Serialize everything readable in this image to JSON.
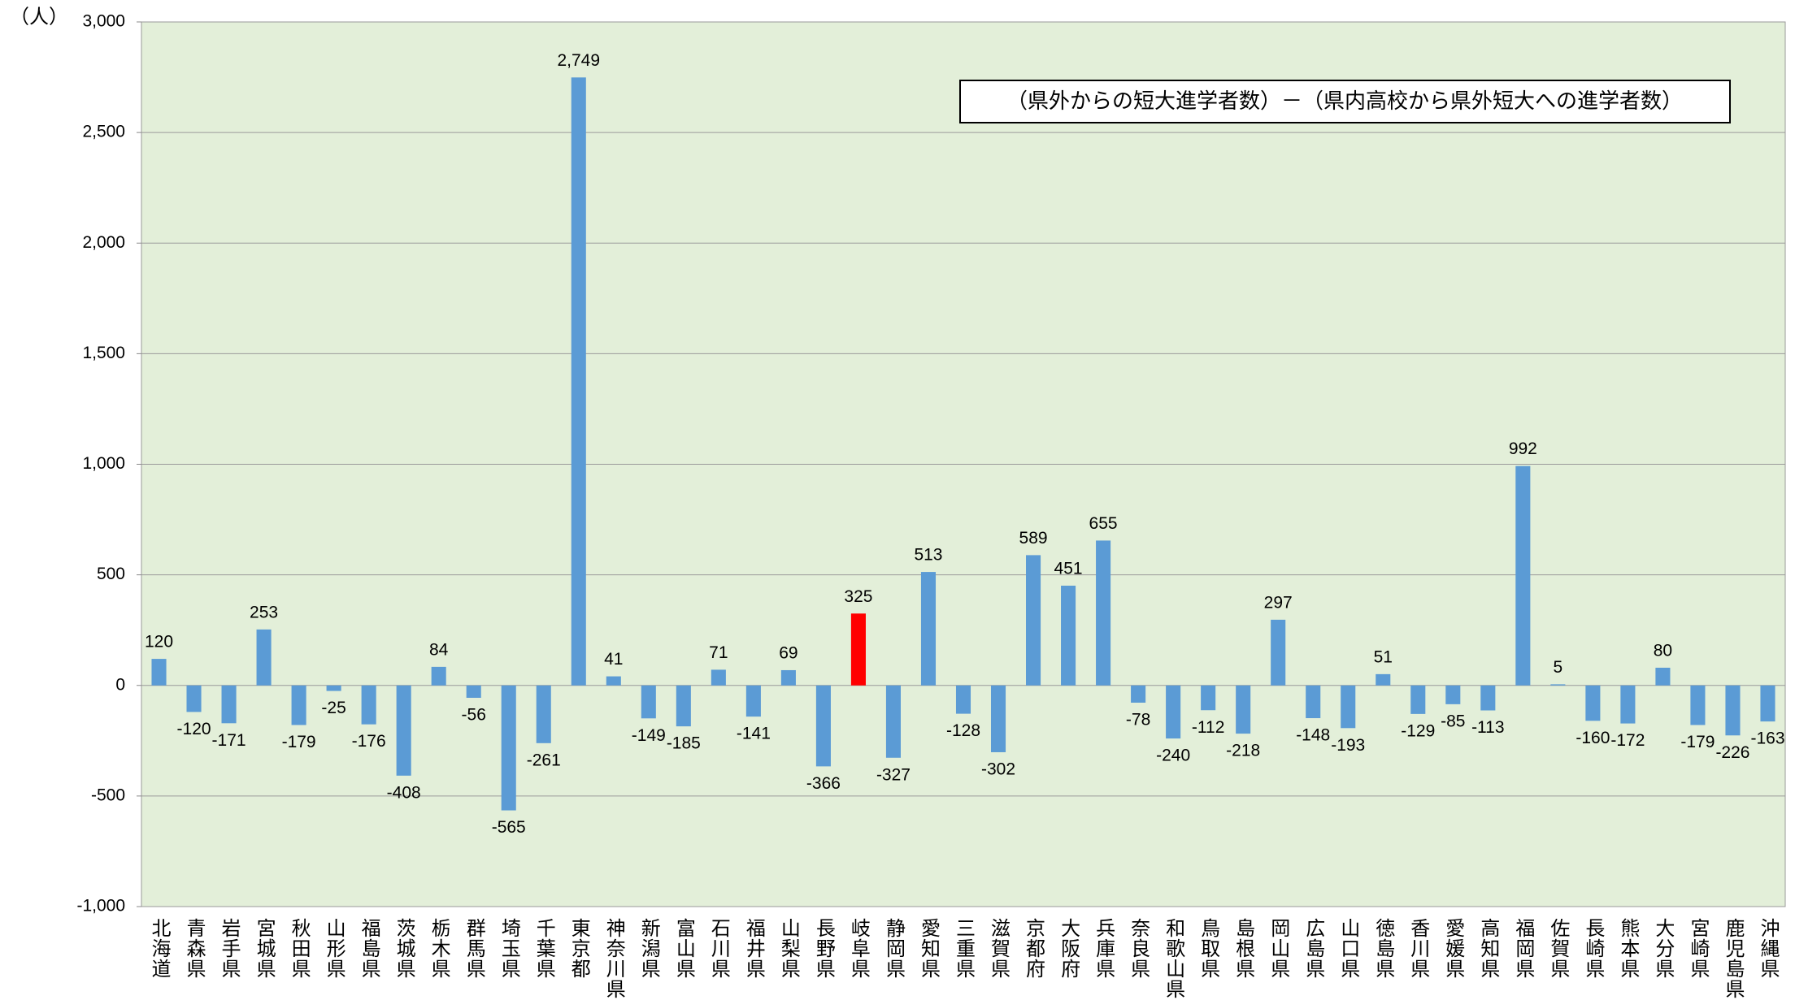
{
  "chart_data": {
    "type": "bar",
    "unit_label": "（人）",
    "annotation": "（県外からの短大進学者数）－（県内高校から県外短大への進学者数）",
    "categories": [
      "北海道",
      "青森県",
      "岩手県",
      "宮城県",
      "秋田県",
      "山形県",
      "福島県",
      "茨城県",
      "栃木県",
      "群馬県",
      "埼玉県",
      "千葉県",
      "東京都",
      "神奈川県",
      "新潟県",
      "富山県",
      "石川県",
      "福井県",
      "山梨県",
      "長野県",
      "岐阜県",
      "静岡県",
      "愛知県",
      "三重県",
      "滋賀県",
      "京都府",
      "大阪府",
      "兵庫県",
      "奈良県",
      "和歌山県",
      "鳥取県",
      "島根県",
      "岡山県",
      "広島県",
      "山口県",
      "徳島県",
      "香川県",
      "愛媛県",
      "高知県",
      "福岡県",
      "佐賀県",
      "長崎県",
      "熊本県",
      "大分県",
      "宮崎県",
      "鹿児島県",
      "沖縄県"
    ],
    "values": [
      120,
      -120,
      -171,
      253,
      -179,
      -25,
      -176,
      -408,
      84,
      -56,
      -565,
      -261,
      2749,
      41,
      -149,
      -185,
      71,
      -141,
      69,
      -366,
      325,
      -327,
      513,
      -128,
      -302,
      589,
      451,
      655,
      -78,
      -240,
      -112,
      -218,
      297,
      -148,
      -193,
      51,
      -129,
      -85,
      -113,
      992,
      5,
      -160,
      -172,
      80,
      -179,
      -226,
      -163
    ],
    "value_labels": [
      "120",
      "-120",
      "-171",
      "253",
      "-179",
      "-25",
      "-176",
      "-408",
      "84",
      "-56",
      "-565",
      "-261",
      "2,749",
      "41",
      "-149",
      "-185",
      "71",
      "-141",
      "69",
      "-366",
      "325",
      "-327",
      "513",
      "-128",
      "-302",
      "589",
      "451",
      "655",
      "-78",
      "-240",
      "-112",
      "-218",
      "297",
      "-148",
      "-193",
      "51",
      "-129",
      "-85",
      "-113",
      "992",
      "5",
      "-160",
      "-172",
      "80",
      "-179",
      "-226",
      "-163"
    ],
    "colors": [
      "#5b9bd5",
      "#5b9bd5",
      "#5b9bd5",
      "#5b9bd5",
      "#5b9bd5",
      "#5b9bd5",
      "#5b9bd5",
      "#5b9bd5",
      "#5b9bd5",
      "#5b9bd5",
      "#5b9bd5",
      "#5b9bd5",
      "#5b9bd5",
      "#5b9bd5",
      "#5b9bd5",
      "#5b9bd5",
      "#5b9bd5",
      "#5b9bd5",
      "#5b9bd5",
      "#5b9bd5",
      "#ff0000",
      "#5b9bd5",
      "#5b9bd5",
      "#5b9bd5",
      "#5b9bd5",
      "#5b9bd5",
      "#5b9bd5",
      "#5b9bd5",
      "#5b9bd5",
      "#5b9bd5",
      "#5b9bd5",
      "#5b9bd5",
      "#5b9bd5",
      "#5b9bd5",
      "#5b9bd5",
      "#5b9bd5",
      "#5b9bd5",
      "#5b9bd5",
      "#5b9bd5",
      "#5b9bd5",
      "#5b9bd5",
      "#5b9bd5",
      "#5b9bd5",
      "#5b9bd5",
      "#5b9bd5",
      "#5b9bd5",
      "#5b9bd5"
    ],
    "ylim": [
      -1000,
      3000
    ],
    "yticks": [
      {
        "value": -1000,
        "label": "-1,000"
      },
      -500,
      0,
      500,
      {
        "value": 1000,
        "label": "1,000"
      },
      {
        "value": 1500,
        "label": "1,500"
      },
      {
        "value": 2000,
        "label": "2,000"
      },
      {
        "value": 2500,
        "label": "2,500"
      },
      {
        "value": 3000,
        "label": "3,000"
      }
    ],
    "grid": true,
    "plot_background": "#e3efd9"
  }
}
